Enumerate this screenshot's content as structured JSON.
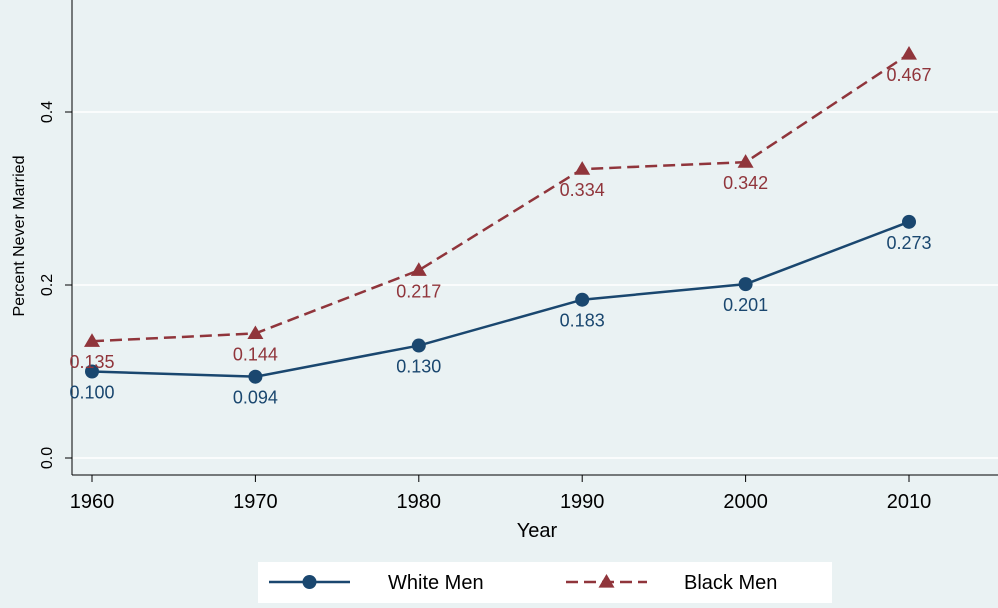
{
  "chart_data": {
    "type": "line",
    "title": "",
    "xlabel": "Year",
    "ylabel": "Percent Never Married",
    "x": [
      1960,
      1970,
      1980,
      1990,
      2000,
      2010
    ],
    "xlim": [
      1960,
      2015
    ],
    "ylim": [
      0,
      0.52
    ],
    "xticks": [
      "1960",
      "1970",
      "1980",
      "1990",
      "2000",
      "2010"
    ],
    "yticks": [
      "0.0",
      "0.2",
      "0.4"
    ],
    "grid": true,
    "legend_position": "bottom",
    "series": [
      {
        "name": "White Men",
        "values": [
          0.1,
          0.094,
          0.13,
          0.183,
          0.201,
          0.273
        ],
        "labels": [
          "0.100",
          "0.094",
          "0.130",
          "0.183",
          "0.201",
          "0.273"
        ],
        "color": "#1a476f",
        "line_style": "solid",
        "marker": "circle"
      },
      {
        "name": "Black Men",
        "values": [
          0.135,
          0.144,
          0.217,
          0.334,
          0.342,
          0.467
        ],
        "labels": [
          "0.135",
          "0.144",
          "0.217",
          "0.334",
          "0.342",
          "0.467"
        ],
        "color": "#90353b",
        "line_style": "dashed",
        "marker": "triangle"
      }
    ]
  }
}
